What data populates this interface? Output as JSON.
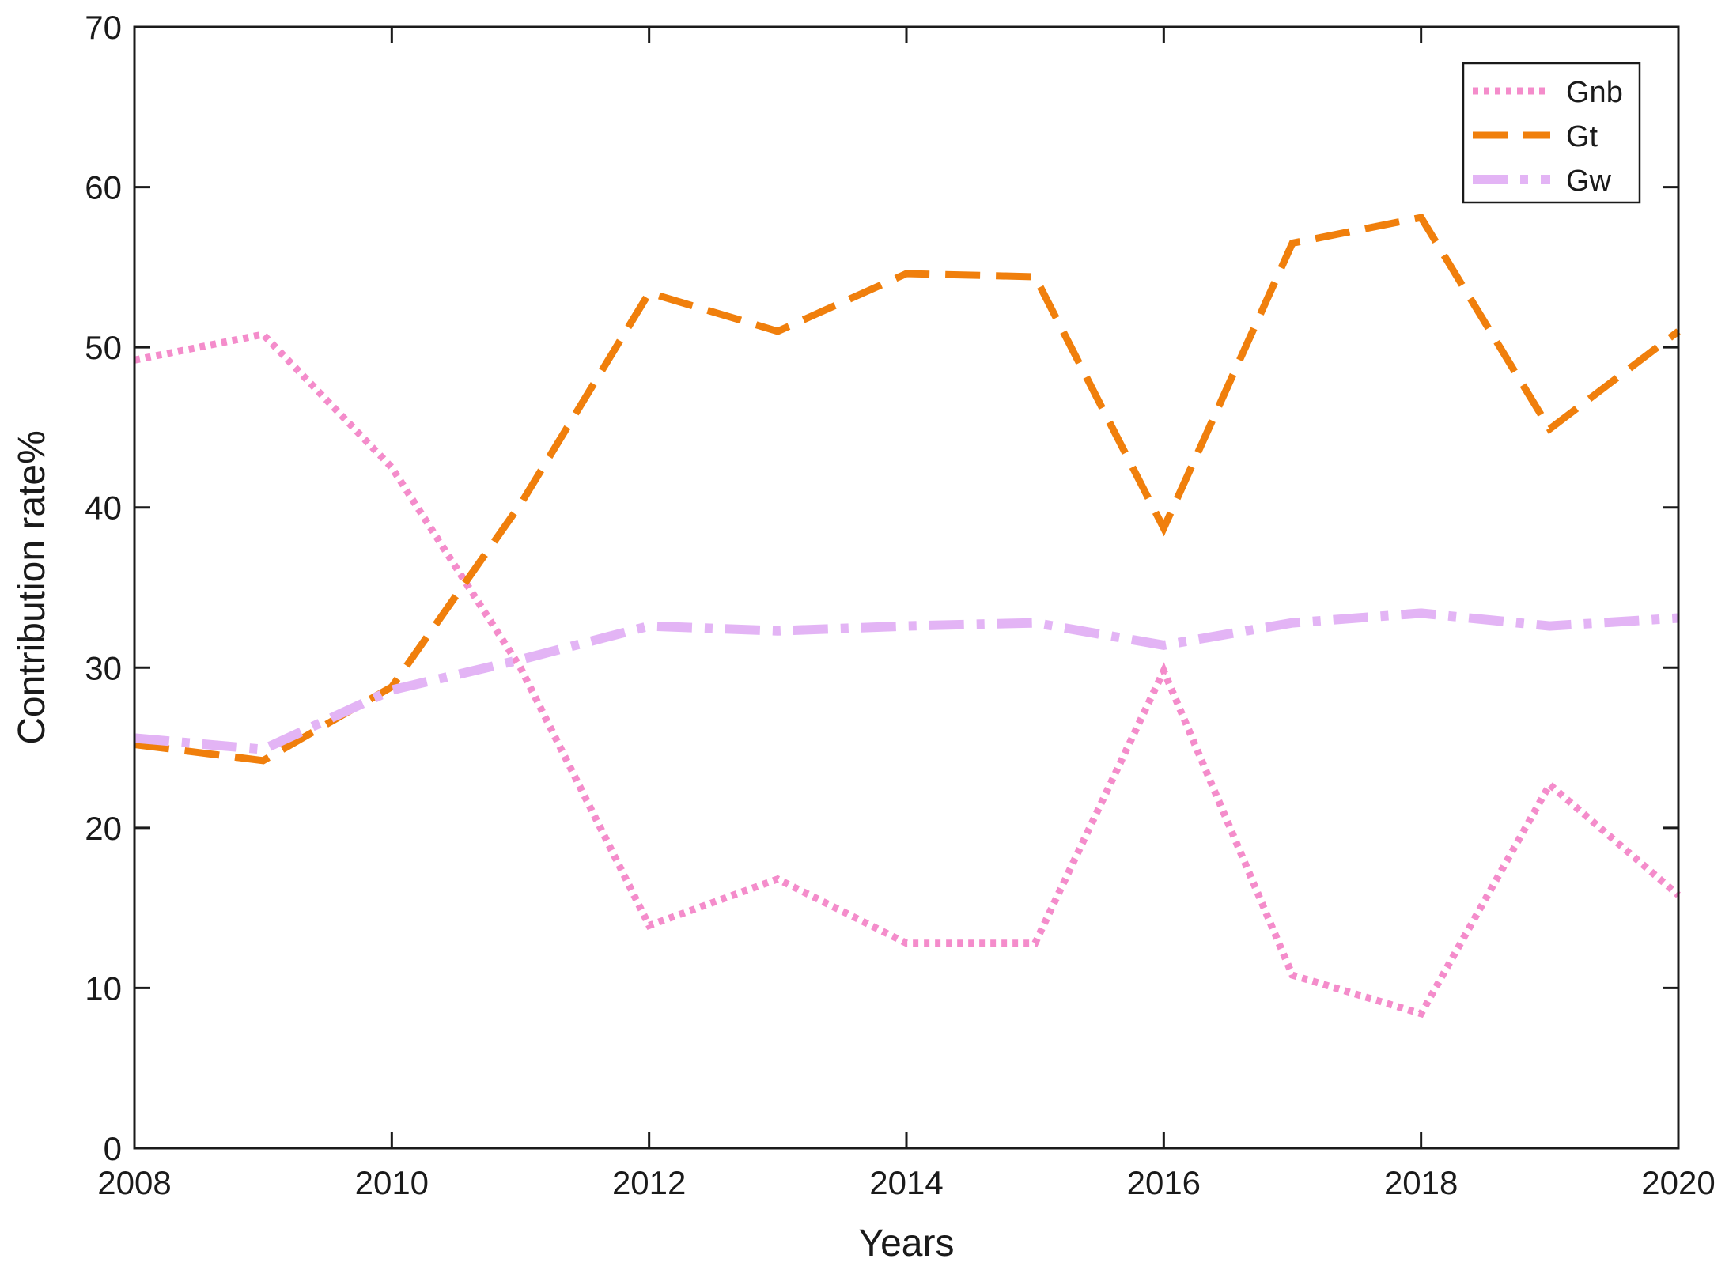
{
  "chart_data": {
    "type": "line",
    "title": "",
    "xlabel": "Years",
    "ylabel": "Contribution rate%",
    "xlim": [
      2008,
      2020
    ],
    "ylim": [
      0,
      70
    ],
    "xticks": [
      2008,
      2010,
      2012,
      2014,
      2016,
      2018,
      2020
    ],
    "yticks": [
      0,
      10,
      20,
      30,
      40,
      50,
      60,
      70
    ],
    "grid": false,
    "legend_position": "top-right",
    "x": [
      2008,
      2009,
      2010,
      2011,
      2012,
      2013,
      2014,
      2015,
      2016,
      2017,
      2018,
      2019,
      2020
    ],
    "series": [
      {
        "name": "Gnb",
        "style": "dotted",
        "color": "#f48ccb",
        "values": [
          49.2,
          50.8,
          42.5,
          30.0,
          13.9,
          16.8,
          12.8,
          12.8,
          29.8,
          10.8,
          8.4,
          22.7,
          15.8
        ]
      },
      {
        "name": "Gt",
        "style": "dashed",
        "color": "#f07f0c",
        "values": [
          25.2,
          24.2,
          28.8,
          40.2,
          53.4,
          51.0,
          54.6,
          54.4,
          38.7,
          56.5,
          58.1,
          44.9,
          51.0
        ]
      },
      {
        "name": "Gw",
        "style": "dash-dot",
        "color": "#e3b4f5",
        "values": [
          25.6,
          24.9,
          28.6,
          30.5,
          32.6,
          32.3,
          32.6,
          32.8,
          31.4,
          32.8,
          33.4,
          32.6,
          33.1
        ]
      }
    ]
  }
}
